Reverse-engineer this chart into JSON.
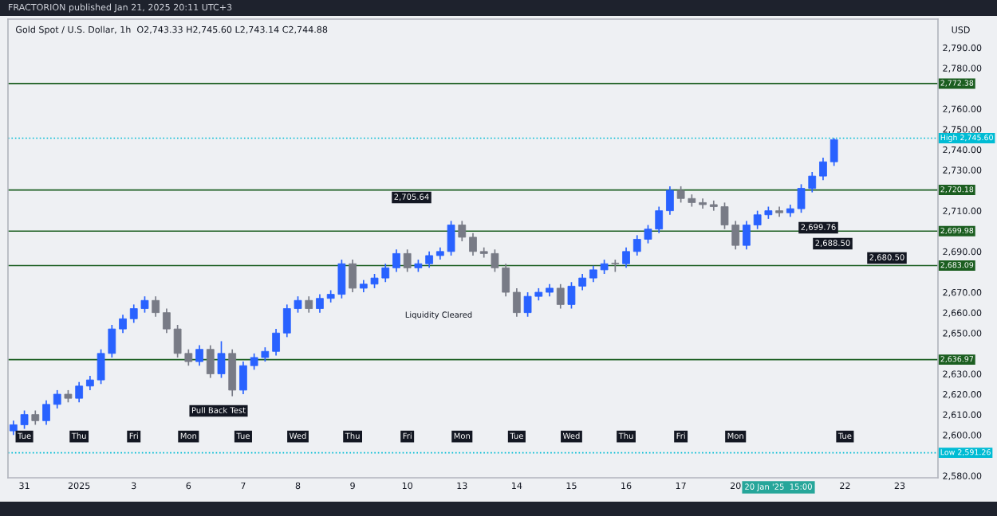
{
  "chart_data": {
    "type": "candlestick",
    "title": "Gold Spot / U.S. Dollar, 1h  O2,743.33 H2,745.60 L2,743.14 C2,744.88",
    "subtitle": "FRACTORION published Jan 21, 2025 20:11 UTC+3",
    "ylabel": "USD",
    "categories": [
      null,
      "31",
      null,
      null,
      null,
      null,
      "2025",
      null,
      null,
      null,
      null,
      "3",
      null,
      null,
      null,
      null,
      "6",
      null,
      null,
      null,
      null,
      "7",
      null,
      null,
      null,
      null,
      "8",
      null,
      null,
      null,
      null,
      "9",
      null,
      null,
      null,
      null,
      "10",
      null,
      null,
      null,
      null,
      "13",
      null,
      null,
      null,
      null,
      "14",
      null,
      null,
      null,
      null,
      "15",
      null,
      null,
      null,
      null,
      "16",
      null,
      null,
      null,
      null,
      "17",
      null,
      null,
      null,
      null,
      "20",
      null,
      null,
      null,
      null,
      null,
      null,
      null,
      null,
      null,
      "22",
      null,
      null,
      null,
      null,
      "23",
      null,
      null,
      null
    ],
    "ohlc": [
      [
        2602,
        2607,
        2600,
        2605
      ],
      [
        2605,
        2612,
        2603,
        2610
      ],
      [
        2610,
        2612,
        2605,
        2607
      ],
      [
        2607,
        2617,
        2605,
        2615
      ],
      [
        2615,
        2622,
        2613,
        2620
      ],
      [
        2620,
        2622,
        2616,
        2618
      ],
      [
        2618,
        2626,
        2616,
        2624
      ],
      [
        2624,
        2629,
        2622,
        2627
      ],
      [
        2627,
        2642,
        2625,
        2640
      ],
      [
        2640,
        2654,
        2638,
        2652
      ],
      [
        2652,
        2659,
        2650,
        2657
      ],
      [
        2657,
        2664,
        2655,
        2662
      ],
      [
        2662,
        2668,
        2660,
        2666
      ],
      [
        2666,
        2668,
        2658,
        2660
      ],
      [
        2660,
        2662,
        2650,
        2652
      ],
      [
        2652,
        2654,
        2638,
        2640
      ],
      [
        2640,
        2642,
        2634,
        2636
      ],
      [
        2636,
        2644,
        2634,
        2642
      ],
      [
        2642,
        2644,
        2628,
        2630
      ],
      [
        2630,
        2646,
        2628,
        2640
      ],
      [
        2640,
        2642,
        2619,
        2622
      ],
      [
        2622,
        2636,
        2620,
        2634
      ],
      [
        2634,
        2640,
        2632,
        2638
      ],
      [
        2638,
        2643,
        2636,
        2641
      ],
      [
        2641,
        2652,
        2639,
        2650
      ],
      [
        2650,
        2664,
        2648,
        2662
      ],
      [
        2662,
        2668,
        2660,
        2666
      ],
      [
        2666,
        2668,
        2660,
        2662
      ],
      [
        2662,
        2669,
        2660,
        2667
      ],
      [
        2667,
        2671,
        2665,
        2669
      ],
      [
        2669,
        2686,
        2667,
        2684
      ],
      [
        2684,
        2686,
        2670,
        2672
      ],
      [
        2672,
        2676,
        2670,
        2674
      ],
      [
        2674,
        2679,
        2672,
        2677
      ],
      [
        2677,
        2684,
        2675,
        2682
      ],
      [
        2682,
        2691,
        2680,
        2689
      ],
      [
        2689,
        2691,
        2680,
        2682
      ],
      [
        2682,
        2686,
        2680,
        2684
      ],
      [
        2684,
        2690,
        2682,
        2688
      ],
      [
        2688,
        2692,
        2686,
        2690
      ],
      [
        2690,
        2705,
        2688,
        2703
      ],
      [
        2703,
        2705,
        2695,
        2697
      ],
      [
        2697,
        2699,
        2688,
        2690
      ],
      [
        2690,
        2692,
        2687,
        2689
      ],
      [
        2689,
        2691,
        2680,
        2682
      ],
      [
        2682,
        2684,
        2668,
        2670
      ],
      [
        2670,
        2672,
        2658,
        2660
      ],
      [
        2660,
        2670,
        2658,
        2668
      ],
      [
        2668,
        2672,
        2666,
        2670
      ],
      [
        2670,
        2674,
        2668,
        2672
      ],
      [
        2672,
        2674,
        2662,
        2664
      ],
      [
        2664,
        2675,
        2662,
        2673
      ],
      [
        2673,
        2679,
        2671,
        2677
      ],
      [
        2677,
        2683,
        2675,
        2681
      ],
      [
        2681,
        2686,
        2679,
        2684
      ],
      [
        2684,
        2686,
        2680,
        2684
      ],
      [
        2684,
        2692,
        2682,
        2690
      ],
      [
        2690,
        2698,
        2688,
        2696
      ],
      [
        2696,
        2703,
        2694,
        2701
      ],
      [
        2701,
        2712,
        2699,
        2710
      ],
      [
        2710,
        2722,
        2708,
        2720
      ],
      [
        2720,
        2722,
        2714,
        2716
      ],
      [
        2716,
        2718,
        2712,
        2714
      ],
      [
        2714,
        2716,
        2711,
        2713
      ],
      [
        2713,
        2715,
        2710,
        2712
      ],
      [
        2712,
        2714,
        2701,
        2703
      ],
      [
        2703,
        2705,
        2691,
        2693
      ],
      [
        2693,
        2705,
        2691,
        2703
      ],
      [
        2703,
        2710,
        2701,
        2708
      ],
      [
        2708,
        2712,
        2706,
        2710
      ],
      [
        2710,
        2712,
        2707,
        2709
      ],
      [
        2709,
        2713,
        2707,
        2711
      ],
      [
        2711,
        2723,
        2709,
        2721
      ],
      [
        2721,
        2729,
        2719,
        2727
      ],
      [
        2727,
        2736,
        2725,
        2734
      ],
      [
        2734,
        2745.6,
        2732,
        2744.88
      ],
      null,
      null,
      null,
      null,
      null,
      null,
      null,
      null,
      null
    ],
    "colors": [
      "#2962ff",
      "#2962ff",
      "#787b86",
      "#2962ff",
      "#2962ff",
      "#787b86",
      "#2962ff",
      "#2962ff",
      "#2962ff",
      "#2962ff",
      "#2962ff",
      "#2962ff",
      "#2962ff",
      "#787b86",
      "#787b86",
      "#787b86",
      "#787b86",
      "#2962ff",
      "#787b86",
      "#2962ff",
      "#787b86",
      "#2962ff",
      "#2962ff",
      "#2962ff",
      "#2962ff",
      "#2962ff",
      "#2962ff",
      "#787b86",
      "#2962ff",
      "#2962ff",
      "#2962ff",
      "#787b86",
      "#2962ff",
      "#2962ff",
      "#2962ff",
      "#2962ff",
      "#787b86",
      "#2962ff",
      "#2962ff",
      "#2962ff",
      "#2962ff",
      "#787b86",
      "#787b86",
      "#787b86",
      "#787b86",
      "#787b86",
      "#787b86",
      "#2962ff",
      "#2962ff",
      "#2962ff",
      "#787b86",
      "#2962ff",
      "#2962ff",
      "#2962ff",
      "#2962ff",
      "#787b86",
      "#2962ff",
      "#2962ff",
      "#2962ff",
      "#2962ff",
      "#2962ff",
      "#787b86",
      "#787b86",
      "#787b86",
      "#787b86",
      "#787b86",
      "#787b86",
      "#2962ff",
      "#2962ff",
      "#2962ff",
      "#787b86",
      "#2962ff",
      "#2962ff",
      "#2962ff",
      "#2962ff",
      "#2962ff",
      null,
      null,
      null,
      null,
      null,
      null,
      null,
      null,
      null
    ],
    "ylim": [
      2579,
      2804
    ],
    "yticks": [
      {
        "value": 2580,
        "label": "2,580.00"
      },
      {
        "value": 2600,
        "label": "2,600.00"
      },
      {
        "value": 2610,
        "label": "2,610.00"
      },
      {
        "value": 2620,
        "label": "2,620.00"
      },
      {
        "value": 2630,
        "label": "2,630.00"
      },
      {
        "value": 2650,
        "label": "2,650.00"
      },
      {
        "value": 2660,
        "label": "2,660.00"
      },
      {
        "value": 2670,
        "label": "2,670.00"
      },
      {
        "value": 2690,
        "label": "2,690.00"
      },
      {
        "value": 2710,
        "label": "2,710.00"
      },
      {
        "value": 2730,
        "label": "2,730.00"
      },
      {
        "value": 2740,
        "label": "2,740.00"
      },
      {
        "value": 2750,
        "label": "2,750.00"
      },
      {
        "value": 2760,
        "label": "2,760.00"
      },
      {
        "value": 2780,
        "label": "2,780.00"
      },
      {
        "value": 2790,
        "label": "2,790.00"
      }
    ],
    "ref_lines": [
      {
        "axis": "y",
        "value": 2772.38,
        "label": "2,772.38",
        "color": "#1b5e20"
      },
      {
        "axis": "y",
        "value": 2745.6,
        "label": "High 2,745.60",
        "color": "#00bcd4",
        "line_style": "dotted"
      },
      {
        "axis": "y",
        "value": 2720.18,
        "label": "2,720.18",
        "color": "#1b5e20"
      },
      {
        "axis": "y",
        "value": 2699.98,
        "label": "2,699.98",
        "color": "#1b5e20"
      },
      {
        "axis": "y",
        "value": 2683.09,
        "label": "2,683.09",
        "color": "#1b5e20"
      },
      {
        "axis": "y",
        "value": 2636.97,
        "label": "2,636.97",
        "color": "#1b5e20"
      },
      {
        "axis": "y",
        "value": 2591.26,
        "label": "Low 2,591.26",
        "color": "#00bcd4",
        "line_style": "dotted"
      }
    ],
    "annotations": [
      "2,705.64",
      "Liquidity Cleared",
      "Pull Back Test",
      "2,699.76",
      "2,688.50",
      "2,680.50",
      "Tue",
      "Thu",
      "Fri",
      "Mon",
      "Tue",
      "Wed",
      "Thu",
      "Fri",
      "Mon",
      "Tue",
      "Wed",
      "Thu",
      "Fri",
      "Mon",
      "Tue",
      "20 Jan '25  15:00"
    ]
  }
}
